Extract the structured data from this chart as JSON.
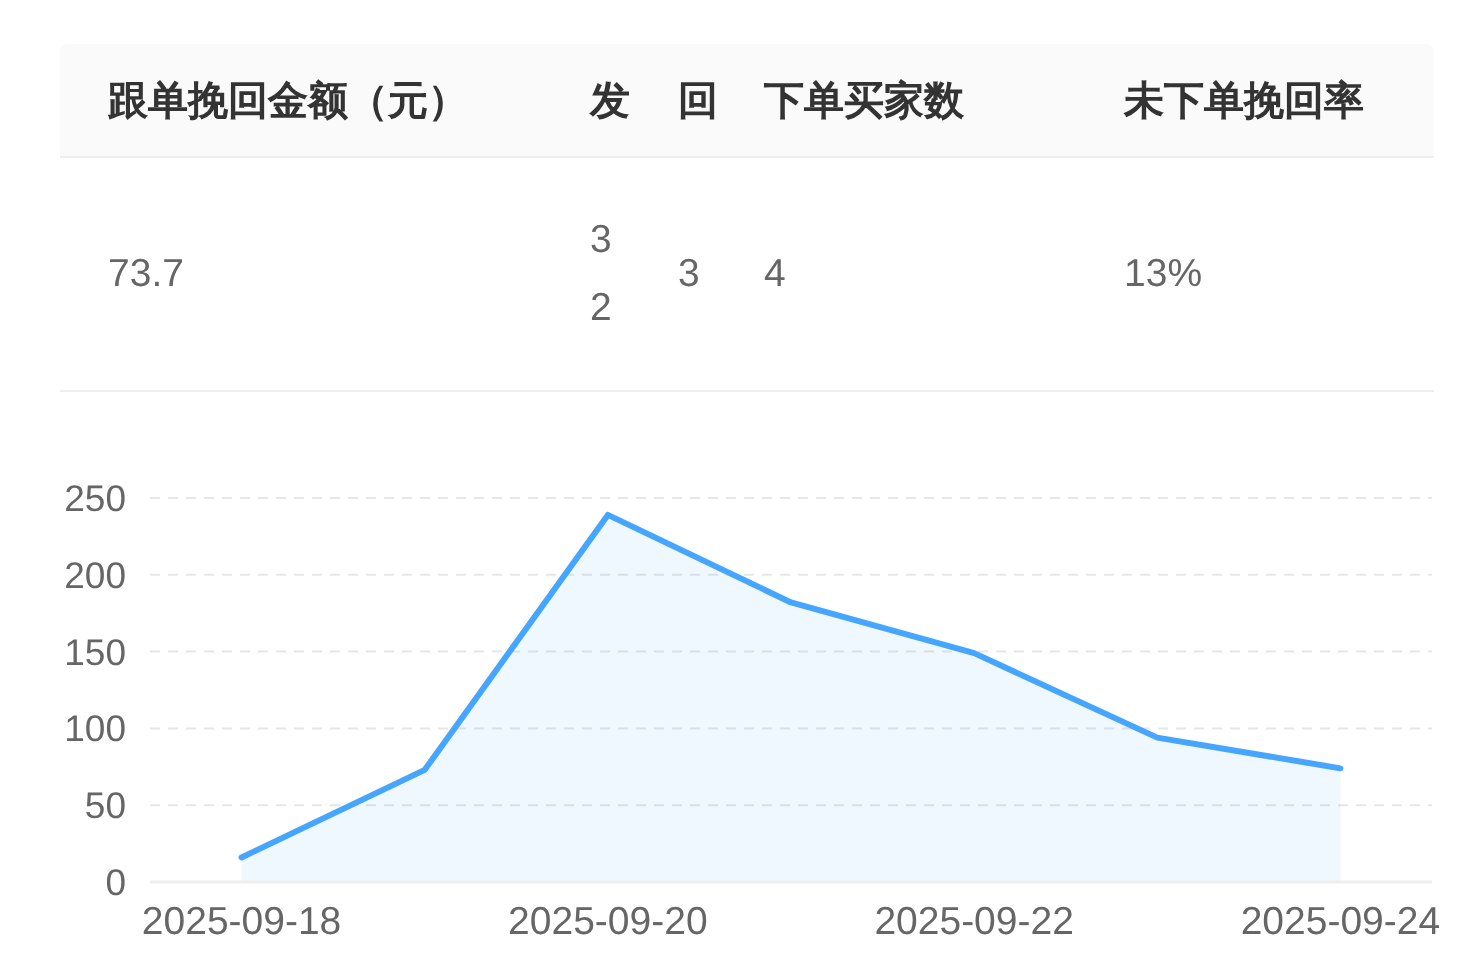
{
  "chart_data": [
    {
      "type": "other",
      "categories": [
        "跟单挽回金额（元）",
        "发",
        "回",
        "下单买家数",
        "未下单挽回率"
      ],
      "value_labels": [
        "73.7",
        "32",
        "3",
        "4",
        "13%"
      ]
    },
    {
      "type": "area",
      "categories": [
        "2025-09-18",
        null,
        "2025-09-20",
        null,
        "2025-09-22",
        null,
        "2025-09-24"
      ],
      "values": [
        16,
        73,
        239,
        182,
        149,
        94,
        74
      ],
      "color": "#46a6ff",
      "ylim": [
        0,
        250
      ],
      "yticks": [
        0,
        50,
        100,
        150,
        200,
        250
      ],
      "grid": "y",
      "line_style": "solid"
    }
  ]
}
